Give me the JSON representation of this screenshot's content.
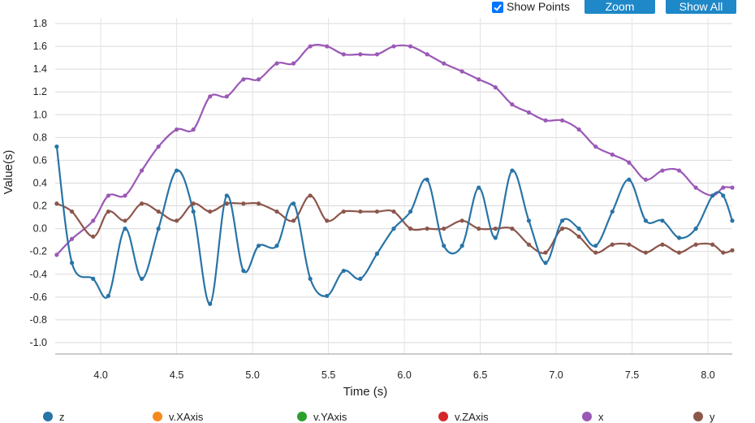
{
  "toolbar": {
    "show_points_label": "Show Points",
    "show_points_checked": true,
    "zoom_label": "Zoom",
    "show_all_label": "Show All"
  },
  "chart_data": {
    "type": "line",
    "xlabel": "Time (s)",
    "ylabel": "Value(s)",
    "xlim": [
      3.7,
      8.16
    ],
    "ylim": [
      -1.1,
      1.85
    ],
    "x_ticks": [
      4.0,
      4.5,
      5.0,
      5.5,
      6.0,
      6.5,
      7.0,
      7.5,
      8.0
    ],
    "y_ticks": [
      1.8,
      1.6,
      1.4,
      1.2,
      1.0,
      0.8,
      0.6,
      0.4,
      0.2,
      0.0,
      -0.2,
      -0.4,
      -0.6,
      -0.8,
      -1.0
    ],
    "grid": true,
    "show_points": true,
    "legend_position": "bottom",
    "legend": [
      {
        "name": "z",
        "color": "#2874a6"
      },
      {
        "name": "v.XAxis",
        "color": "#f5891f"
      },
      {
        "name": "v.YAxis",
        "color": "#2ca02c"
      },
      {
        "name": "v.ZAxis",
        "color": "#d62728"
      },
      {
        "name": "x",
        "color": "#9b59b6"
      },
      {
        "name": "y",
        "color": "#8c564b"
      }
    ],
    "series": [
      {
        "name": "x",
        "color": "#9b59b6",
        "points": [
          [
            3.71,
            -0.23
          ],
          [
            3.81,
            -0.09
          ],
          [
            3.95,
            0.07
          ],
          [
            4.05,
            0.29
          ],
          [
            4.16,
            0.29
          ],
          [
            4.27,
            0.51
          ],
          [
            4.38,
            0.72
          ],
          [
            4.5,
            0.87
          ],
          [
            4.61,
            0.87
          ],
          [
            4.72,
            1.16
          ],
          [
            4.83,
            1.16
          ],
          [
            4.94,
            1.31
          ],
          [
            5.04,
            1.31
          ],
          [
            5.16,
            1.45
          ],
          [
            5.27,
            1.45
          ],
          [
            5.38,
            1.6
          ],
          [
            5.49,
            1.6
          ],
          [
            5.6,
            1.53
          ],
          [
            5.71,
            1.53
          ],
          [
            5.82,
            1.53
          ],
          [
            5.93,
            1.6
          ],
          [
            6.04,
            1.6
          ],
          [
            6.15,
            1.53
          ],
          [
            6.26,
            1.45
          ],
          [
            6.38,
            1.38
          ],
          [
            6.49,
            1.31
          ],
          [
            6.6,
            1.24
          ],
          [
            6.71,
            1.09
          ],
          [
            6.82,
            1.02
          ],
          [
            6.93,
            0.95
          ],
          [
            7.04,
            0.95
          ],
          [
            7.15,
            0.87
          ],
          [
            7.26,
            0.72
          ],
          [
            7.37,
            0.65
          ],
          [
            7.48,
            0.58
          ],
          [
            7.59,
            0.43
          ],
          [
            7.7,
            0.51
          ],
          [
            7.81,
            0.51
          ],
          [
            7.92,
            0.36
          ],
          [
            8.03,
            0.29
          ],
          [
            8.1,
            0.36
          ],
          [
            8.16,
            0.36
          ]
        ]
      },
      {
        "name": "y",
        "color": "#8c564b",
        "points": [
          [
            3.71,
            0.22
          ],
          [
            3.81,
            0.15
          ],
          [
            3.95,
            -0.07
          ],
          [
            4.05,
            0.15
          ],
          [
            4.16,
            0.07
          ],
          [
            4.27,
            0.22
          ],
          [
            4.38,
            0.15
          ],
          [
            4.5,
            0.07
          ],
          [
            4.61,
            0.22
          ],
          [
            4.72,
            0.15
          ],
          [
            4.83,
            0.22
          ],
          [
            4.94,
            0.22
          ],
          [
            5.04,
            0.22
          ],
          [
            5.16,
            0.15
          ],
          [
            5.27,
            0.07
          ],
          [
            5.38,
            0.29
          ],
          [
            5.49,
            0.07
          ],
          [
            5.6,
            0.15
          ],
          [
            5.71,
            0.15
          ],
          [
            5.82,
            0.15
          ],
          [
            5.93,
            0.15
          ],
          [
            6.04,
            0.0
          ],
          [
            6.15,
            0.0
          ],
          [
            6.26,
            0.0
          ],
          [
            6.38,
            0.07
          ],
          [
            6.49,
            0.0
          ],
          [
            6.6,
            0.0
          ],
          [
            6.71,
            0.0
          ],
          [
            6.82,
            -0.14
          ],
          [
            6.93,
            -0.21
          ],
          [
            7.04,
            0.0
          ],
          [
            7.15,
            -0.07
          ],
          [
            7.26,
            -0.21
          ],
          [
            7.37,
            -0.14
          ],
          [
            7.48,
            -0.14
          ],
          [
            7.59,
            -0.21
          ],
          [
            7.7,
            -0.14
          ],
          [
            7.81,
            -0.21
          ],
          [
            7.92,
            -0.14
          ],
          [
            8.03,
            -0.14
          ],
          [
            8.1,
            -0.21
          ],
          [
            8.16,
            -0.19
          ]
        ]
      },
      {
        "name": "z",
        "color": "#2874a6",
        "points": [
          [
            3.71,
            0.72
          ],
          [
            3.81,
            -0.3
          ],
          [
            3.95,
            -0.44
          ],
          [
            4.05,
            -0.59
          ],
          [
            4.16,
            0.0
          ],
          [
            4.27,
            -0.44
          ],
          [
            4.38,
            0.0
          ],
          [
            4.5,
            0.51
          ],
          [
            4.61,
            0.15
          ],
          [
            4.72,
            -0.66
          ],
          [
            4.83,
            0.29
          ],
          [
            4.94,
            -0.37
          ],
          [
            5.04,
            -0.15
          ],
          [
            5.16,
            -0.15
          ],
          [
            5.27,
            0.22
          ],
          [
            5.38,
            -0.44
          ],
          [
            5.49,
            -0.59
          ],
          [
            5.6,
            -0.37
          ],
          [
            5.71,
            -0.44
          ],
          [
            5.82,
            -0.22
          ],
          [
            5.93,
            0.0
          ],
          [
            6.04,
            0.15
          ],
          [
            6.15,
            0.43
          ],
          [
            6.26,
            -0.15
          ],
          [
            6.38,
            -0.15
          ],
          [
            6.49,
            0.36
          ],
          [
            6.6,
            -0.08
          ],
          [
            6.71,
            0.51
          ],
          [
            6.82,
            0.07
          ],
          [
            6.93,
            -0.3
          ],
          [
            7.04,
            0.07
          ],
          [
            7.15,
            0.0
          ],
          [
            7.26,
            -0.15
          ],
          [
            7.37,
            0.15
          ],
          [
            7.48,
            0.43
          ],
          [
            7.59,
            0.07
          ],
          [
            7.7,
            0.07
          ],
          [
            7.81,
            -0.08
          ],
          [
            7.92,
            0.0
          ],
          [
            8.03,
            0.29
          ],
          [
            8.1,
            0.29
          ],
          [
            8.16,
            0.07
          ]
        ]
      }
    ]
  }
}
